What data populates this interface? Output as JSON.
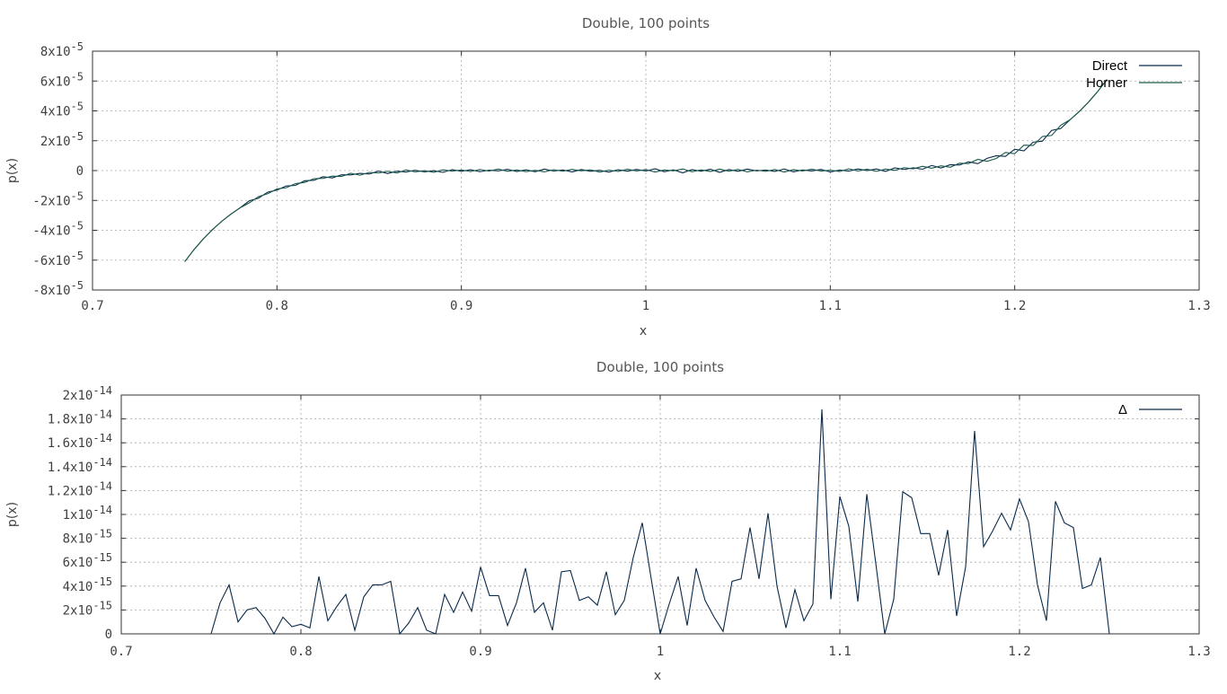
{
  "chart_data": [
    {
      "type": "line",
      "title": "Double, 100 points",
      "xlabel": "x",
      "ylabel": "p(x)",
      "xlim": [
        0.7,
        1.3
      ],
      "ylim": [
        -8e-05,
        8e-05
      ],
      "grid": true,
      "legend_position": "top-right",
      "x_ticks": [
        "0.7",
        "0.8",
        "0.9",
        "1",
        "1.1",
        "1.2",
        "1.3"
      ],
      "y_ticks": [
        {
          "mant": "8x10",
          "exp": "-5"
        },
        {
          "mant": "6x10",
          "exp": "-5"
        },
        {
          "mant": "4x10",
          "exp": "-5"
        },
        {
          "mant": "2x10",
          "exp": "-5"
        },
        {
          "mant": "0",
          "exp": ""
        },
        {
          "mant": "-2x10",
          "exp": "-5"
        },
        {
          "mant": "-4x10",
          "exp": "-5"
        },
        {
          "mant": "-6x10",
          "exp": "-5"
        },
        {
          "mant": "-8x10",
          "exp": "-5"
        }
      ],
      "series": [
        {
          "name": "Direct",
          "color": "#0a2a4a",
          "noise": [
            0,
            0,
            0,
            0,
            0,
            0,
            0,
            1e-06,
            -5e-07,
            8e-07,
            -3e-07,
            4e-07,
            -1e-06,
            6e-07,
            -4e-07,
            9e-07,
            -8e-07,
            5e-07,
            -2e-07,
            3e-07,
            -6e-07,
            1e-06,
            -9e-07,
            4e-07,
            -3e-07,
            7e-07,
            -5e-07,
            2e-07,
            -1e-06,
            8e-07,
            -4e-07,
            6e-07,
            -7e-07,
            3e-07,
            -2e-07,
            9e-07,
            -6e-07,
            5e-07,
            -8e-07,
            1e-06,
            -3e-07,
            4e-07,
            -9e-07,
            7e-07,
            -5e-07,
            2e-07,
            -1e-06,
            6e-07,
            -4e-07,
            8e-07,
            -3e-07,
            1.2e-06,
            -8e-07,
            5e-07,
            -1.5e-06,
            6e-07,
            -4e-07,
            9e-07,
            -1.2e-06,
            7e-07,
            -5e-07,
            1e-06,
            -2e-07,
            3e-07,
            -6e-07,
            1.1e-06,
            -9e-07,
            4e-07,
            -3e-07,
            7e-07,
            -1e-06,
            2e-07,
            -5e-07,
            8e-07,
            -4e-07,
            6e-07,
            -1.2e-06,
            1e-06,
            -3e-07,
            5e-07,
            -8e-07,
            1.3e-06,
            -1e-06,
            6e-07,
            -4e-07,
            9e-07,
            -1.5e-06,
            8e-07,
            1e-06,
            -1.2e-06,
            1.5e-06,
            -2e-06,
            1e-06,
            -1.5e-06,
            2e-06,
            -1e-06,
            0,
            0,
            0,
            0,
            0
          ]
        },
        {
          "name": "Horner",
          "color": "#1a5a4a",
          "noise": [
            0,
            0,
            0,
            0,
            0,
            0,
            0,
            -4e-07,
            6e-07,
            -3e-07,
            5e-07,
            -8e-07,
            2e-07,
            -5e-07,
            7e-07,
            -2e-07,
            4e-07,
            -6e-07,
            9e-07,
            -1e-06,
            5e-07,
            -3e-07,
            6e-07,
            -8e-07,
            1e-06,
            -4e-07,
            3e-07,
            -9e-07,
            7e-07,
            -2e-07,
            5e-07,
            -6e-07,
            8e-07,
            -3e-07,
            1e-06,
            -5e-07,
            4e-07,
            -7e-07,
            2e-07,
            -9e-07,
            6e-07,
            -4e-07,
            8e-07,
            -2e-07,
            5e-07,
            -1e-06,
            3e-07,
            -6e-07,
            9e-07,
            -3e-07,
            7e-07,
            -1e-06,
            4e-07,
            -2e-07,
            1.1e-06,
            -8e-07,
            5e-07,
            -6e-07,
            1e-06,
            -4e-07,
            8e-07,
            -9e-07,
            3e-07,
            -5e-07,
            7e-07,
            -1e-06,
            6e-07,
            -3e-07,
            9e-07,
            -4e-07,
            2e-07,
            -8e-07,
            1e-06,
            -5e-07,
            6e-07,
            -1e-06,
            4e-07,
            -7e-07,
            9e-07,
            -2e-07,
            1.2e-06,
            -6e-07,
            5e-07,
            -1.1e-06,
            8e-07,
            -3e-07,
            1.4e-06,
            -1.2e-06,
            -8e-07,
            1.4e-06,
            -1.5e-06,
            1.8e-06,
            -1.2e-06,
            1.6e-06,
            -1.4e-06,
            1.2e-06,
            0,
            0,
            0,
            0,
            0
          ]
        }
      ]
    },
    {
      "type": "line",
      "title": "Double, 100 points",
      "xlabel": "x",
      "ylabel": "p(x)",
      "xlim": [
        0.7,
        1.3
      ],
      "ylim": [
        0,
        2e-14
      ],
      "grid": true,
      "legend_position": "top-right",
      "x_ticks": [
        "0.7",
        "0.8",
        "0.9",
        "1",
        "1.1",
        "1.2",
        "1.3"
      ],
      "y_ticks": [
        {
          "mant": "2x10",
          "exp": "-14"
        },
        {
          "mant": "1.8x10",
          "exp": "-14"
        },
        {
          "mant": "1.6x10",
          "exp": "-14"
        },
        {
          "mant": "1.4x10",
          "exp": "-14"
        },
        {
          "mant": "1.2x10",
          "exp": "-14"
        },
        {
          "mant": "1x10",
          "exp": "-14"
        },
        {
          "mant": "8x10",
          "exp": "-15"
        },
        {
          "mant": "6x10",
          "exp": "-15"
        },
        {
          "mant": "4x10",
          "exp": "-15"
        },
        {
          "mant": "2x10",
          "exp": "-15"
        },
        {
          "mant": "0",
          "exp": ""
        }
      ],
      "series": [
        {
          "name": "Δ",
          "color": "#0a2a4a",
          "x": [
            0.75,
            0.755,
            0.76,
            0.765,
            0.77,
            0.775,
            0.78,
            0.785,
            0.79,
            0.795,
            0.8,
            0.805,
            0.81,
            0.815,
            0.82,
            0.825,
            0.83,
            0.835,
            0.84,
            0.845,
            0.85,
            0.855,
            0.86,
            0.865,
            0.87,
            0.875,
            0.88,
            0.885,
            0.89,
            0.895,
            0.9,
            0.905,
            0.91,
            0.915,
            0.92,
            0.925,
            0.93,
            0.935,
            0.94,
            0.945,
            0.95,
            0.955,
            0.96,
            0.965,
            0.97,
            0.975,
            0.98,
            0.985,
            0.99,
            0.995,
            1.0,
            1.005,
            1.01,
            1.015,
            1.02,
            1.025,
            1.03,
            1.035,
            1.04,
            1.045,
            1.05,
            1.055,
            1.06,
            1.065,
            1.07,
            1.075,
            1.08,
            1.085,
            1.09,
            1.095,
            1.1,
            1.105,
            1.11,
            1.115,
            1.12,
            1.125,
            1.13,
            1.135,
            1.14,
            1.145,
            1.15,
            1.155,
            1.16,
            1.165,
            1.17,
            1.175,
            1.18,
            1.185,
            1.19,
            1.195,
            1.2,
            1.205,
            1.21,
            1.215,
            1.22,
            1.225,
            1.23,
            1.235,
            1.24,
            1.245,
            1.25
          ],
          "values": [
            0,
            2.6e-15,
            4.1e-15,
            1e-15,
            2e-15,
            2.2e-15,
            1.3e-15,
            0,
            1.4e-15,
            6e-16,
            8e-16,
            5e-16,
            4.8e-15,
            1.1e-15,
            2.3e-15,
            3.3e-15,
            3e-16,
            3.1e-15,
            4.1e-15,
            4.1e-15,
            4.4e-15,
            0,
            9e-16,
            2.2e-15,
            3e-16,
            0,
            3.3e-15,
            1.8e-15,
            3.5e-15,
            1.9e-15,
            5.6e-15,
            3.2e-15,
            3.2e-15,
            7e-16,
            2.6e-15,
            5.5e-15,
            1.8e-15,
            2.6e-15,
            3e-16,
            5.2e-15,
            5.3e-15,
            2.8e-15,
            3.1e-15,
            2.4e-15,
            5.2e-15,
            1.6e-15,
            2.8e-15,
            6.4e-15,
            9.3e-15,
            4.6e-15,
            0,
            2.5e-15,
            4.8e-15,
            7e-16,
            5.5e-15,
            2.8e-15,
            1.4e-15,
            2e-16,
            4.4e-15,
            4.6e-15,
            8.9e-15,
            4.6e-15,
            1.01e-14,
            4e-15,
            5e-16,
            3.7e-15,
            1.1e-15,
            2.5e-15,
            1.88e-14,
            2.9e-15,
            1.15e-14,
            9e-15,
            2.7e-15,
            1.17e-14,
            5.9e-15,
            0,
            2.9e-15,
            1.19e-14,
            1.14e-14,
            8.4e-15,
            8.4e-15,
            4.9e-15,
            8.7e-15,
            1.5e-15,
            5.6e-15,
            1.7e-14,
            7.3e-15,
            8.6e-15,
            1.01e-14,
            8.7e-15,
            1.13e-14,
            9.4e-15,
            4.1e-15,
            1.1e-15,
            1.11e-14,
            9.3e-15,
            8.9e-15,
            3.8e-15,
            4.1e-15,
            6.4e-15,
            0
          ]
        }
      ]
    }
  ]
}
